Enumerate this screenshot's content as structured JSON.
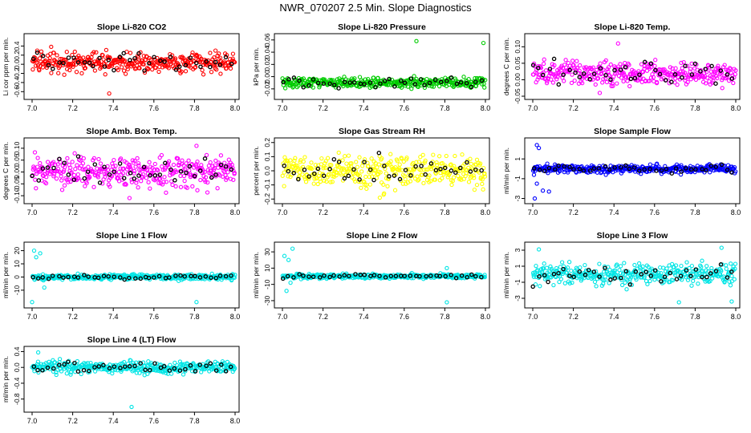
{
  "title": "NWR_070207  2.5 Min. Slope Diagnostics",
  "colors": {
    "black": "#000000"
  },
  "chart_data": [
    {
      "type": "scatter",
      "title": "Slope Li-820 CO2",
      "ylabel": "Li cor ppm per min.",
      "xlim": [
        7.0,
        8.0
      ],
      "ylim": [
        -0.7,
        0.6
      ],
      "xticks": [
        7.0,
        7.2,
        7.4,
        7.6,
        7.8,
        8.0
      ],
      "yticks": [
        -0.6,
        -0.4,
        -0.2,
        0.0,
        0.2,
        0.4
      ],
      "ytick_labels": [
        "-0.6",
        "-0.4",
        "-0.2",
        "0.0",
        "0.2",
        "0.4"
      ],
      "color": "#ff0000",
      "center": 0.05,
      "spread": 0.16,
      "outliers": [
        [
          7.38,
          -0.64
        ]
      ]
    },
    {
      "type": "scatter",
      "title": "Slope Li-820 Pressure",
      "ylabel": "kPa per min.",
      "xlim": [
        7.0,
        8.0
      ],
      "ylim": [
        -0.032,
        0.065
      ],
      "xticks": [
        7.0,
        7.2,
        7.4,
        7.6,
        7.8,
        8.0
      ],
      "yticks": [
        -0.02,
        0.0,
        0.02,
        0.04,
        0.06
      ],
      "ytick_labels": [
        "-0.02",
        "0.00",
        "0.02",
        "0.04",
        "0.06"
      ],
      "color": "#00cc00",
      "center": -0.01,
      "spread": 0.006,
      "outliers": [
        [
          7.66,
          0.058
        ],
        [
          7.99,
          0.055
        ]
      ]
    },
    {
      "type": "scatter",
      "title": "Slope Li-820 Temp.",
      "ylabel": "degrees C per min.",
      "xlim": [
        7.0,
        8.0
      ],
      "ylim": [
        -0.05,
        0.13
      ],
      "xticks": [
        7.0,
        7.2,
        7.4,
        7.6,
        7.8,
        8.0
      ],
      "yticks": [
        -0.05,
        0.0,
        0.05,
        0.1
      ],
      "ytick_labels": [
        "-0.05",
        "0.00",
        "0.05",
        "0.10"
      ],
      "color": "#ff00ff",
      "center": 0.02,
      "spread": 0.025,
      "outliers": [
        [
          7.33,
          -0.04
        ],
        [
          7.42,
          0.11
        ]
      ]
    },
    {
      "type": "scatter",
      "title": "Slope Amb. Box Temp.",
      "ylabel": "degrees C per min.",
      "xlim": [
        7.0,
        8.0
      ],
      "ylim": [
        -0.12,
        0.13
      ],
      "xticks": [
        7.0,
        7.2,
        7.4,
        7.6,
        7.8,
        8.0
      ],
      "yticks": [
        -0.1,
        -0.05,
        0.0,
        0.05,
        0.1
      ],
      "ytick_labels": [
        "-0.10",
        "-0.05",
        "0.00",
        "0.05",
        "0.10"
      ],
      "color": "#ff00ff",
      "center": 0.0,
      "spread": 0.045,
      "outliers": [
        [
          7.81,
          0.11
        ],
        [
          7.48,
          -0.11
        ]
      ]
    },
    {
      "type": "scatter",
      "title": "Slope Gas Stream RH",
      "ylabel": "percent per min.",
      "xlim": [
        7.0,
        8.0
      ],
      "ylim": [
        -0.21,
        0.21
      ],
      "xticks": [
        7.0,
        7.2,
        7.4,
        7.6,
        7.8,
        8.0
      ],
      "yticks": [
        -0.2,
        -0.1,
        0.0,
        0.1,
        0.2
      ],
      "ytick_labels": [
        "-0.2",
        "-0.1",
        "0.0",
        "0.1",
        "0.2"
      ],
      "color": "#ffff00",
      "center": 0.0,
      "spread": 0.08,
      "outliers": [
        [
          7.48,
          -0.19
        ]
      ]
    },
    {
      "type": "scatter",
      "title": "Slope Sample Flow",
      "ylabel": "ml/min per min.",
      "xlim": [
        7.0,
        8.0
      ],
      "ylim": [
        -3.2,
        2.8
      ],
      "xticks": [
        7.0,
        7.2,
        7.4,
        7.6,
        7.8,
        8.0
      ],
      "yticks": [
        -3,
        -1,
        1
      ],
      "ytick_labels": [
        "-3",
        "-1",
        "1"
      ],
      "color": "#0000ff",
      "center": 0.0,
      "spread": 0.3,
      "outliers": [
        [
          7.02,
          2.4
        ],
        [
          7.03,
          2.1
        ],
        [
          7.01,
          -3.0
        ],
        [
          7.05,
          -2.2
        ],
        [
          7.08,
          -2.3
        ],
        [
          7.02,
          -1.5
        ]
      ]
    },
    {
      "type": "scatter",
      "title": "Slope Line 1 Flow",
      "ylabel": "ml/min per min.",
      "xlim": [
        7.0,
        8.0
      ],
      "ylim": [
        -21,
        24
      ],
      "xticks": [
        7.0,
        7.2,
        7.4,
        7.6,
        7.8,
        8.0
      ],
      "yticks": [
        -10,
        0,
        10,
        20
      ],
      "ytick_labels": [
        "-10",
        "0",
        "10",
        "20"
      ],
      "color": "#00e5e5",
      "center": 0.0,
      "spread": 1.5,
      "outliers": [
        [
          7.01,
          20
        ],
        [
          7.04,
          18
        ],
        [
          7.02,
          15
        ],
        [
          7.0,
          -19
        ],
        [
          7.81,
          -19
        ],
        [
          7.06,
          -8
        ]
      ]
    },
    {
      "type": "scatter",
      "title": "Slope Line 2 Flow",
      "ylabel": "ml/min per min.",
      "xlim": [
        7.0,
        8.0
      ],
      "ylim": [
        -35,
        38
      ],
      "xticks": [
        7.0,
        7.2,
        7.4,
        7.6,
        7.8,
        8.0
      ],
      "yticks": [
        -30,
        -10,
        10,
        30
      ],
      "ytick_labels": [
        "-30",
        "-10",
        "10",
        "30"
      ],
      "color": "#00e5e5",
      "center": 0.0,
      "spread": 2.0,
      "outliers": [
        [
          7.05,
          34
        ],
        [
          7.01,
          25
        ],
        [
          7.03,
          20
        ],
        [
          7.02,
          -18
        ],
        [
          7.81,
          -32
        ],
        [
          7.81,
          10
        ],
        [
          7.04,
          -8
        ]
      ]
    },
    {
      "type": "scatter",
      "title": "Slope Line 3 Flow",
      "ylabel": "ml/min per min.",
      "xlim": [
        7.0,
        8.0
      ],
      "ylim": [
        -3.8,
        3.6
      ],
      "xticks": [
        7.0,
        7.2,
        7.4,
        7.6,
        7.8,
        8.0
      ],
      "yticks": [
        -3,
        -1,
        1,
        3
      ],
      "ytick_labels": [
        "-3",
        "-1",
        "1",
        "3"
      ],
      "color": "#00e5e5",
      "center": 0.0,
      "spread": 0.9,
      "outliers": [
        [
          7.03,
          3.1
        ],
        [
          7.98,
          -3.4
        ],
        [
          7.72,
          -3.5
        ],
        [
          7.93,
          3.3
        ]
      ]
    },
    {
      "type": "scatter",
      "title": "Slope Line 4 (LT) Flow",
      "ylabel": "ml/min per min.",
      "xlim": [
        7.0,
        8.0
      ],
      "ylim": [
        -1.05,
        0.45
      ],
      "xticks": [
        7.0,
        7.2,
        7.4,
        7.6,
        7.8,
        8.0
      ],
      "yticks": [
        -0.8,
        -0.4,
        0.0,
        0.4
      ],
      "ytick_labels": [
        "-0.8",
        "-0.4",
        "0.0",
        "0.4"
      ],
      "color": "#00e5e5",
      "center": 0.0,
      "spread": 0.11,
      "outliers": [
        [
          7.49,
          -1.0
        ],
        [
          7.03,
          0.38
        ]
      ]
    }
  ]
}
